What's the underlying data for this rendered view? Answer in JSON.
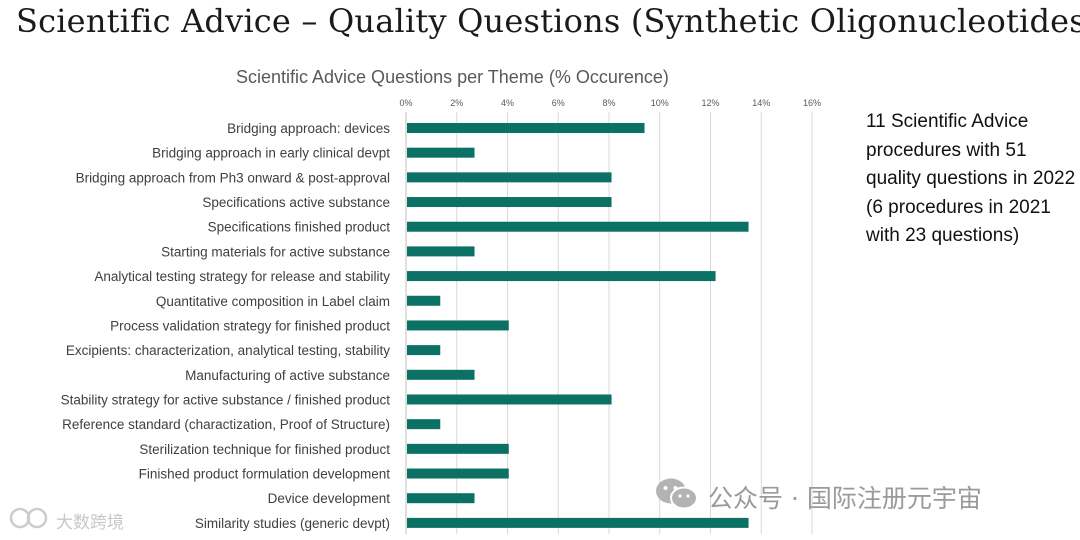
{
  "slide": {
    "title": "Scientific Advice – Quality Questions (Synthetic Oligonucleotides)",
    "side_note": "11 Scientific Advice procedures with 51 quality questions in 2022 (6 procedures in 2021 with 23 questions)"
  },
  "watermarks": {
    "right_text": "公众号 · 国际注册元宇宙",
    "right_icon": "wechat-icon",
    "left_text": "大数跨境",
    "left_icon": "logo-icon"
  },
  "colors": {
    "bar": "#0b7165",
    "grid": "#d9d9d9"
  },
  "chart_data": {
    "type": "bar",
    "orientation": "horizontal",
    "title": "Scientific Advice Questions per Theme (% Occurence)",
    "xlim": [
      0,
      16
    ],
    "xticks": [
      "0%",
      "2%",
      "4%",
      "6%",
      "8%",
      "10%",
      "12%",
      "14%",
      "16%"
    ],
    "xtick_values": [
      0,
      2,
      4,
      6,
      8,
      10,
      12,
      14,
      16
    ],
    "axis_position": "top",
    "grid": true,
    "legend": false,
    "categories": [
      "Bridging approach: devices",
      "Bridging approach in early clinical devpt",
      "Bridging approach from Ph3 onward & post-approval",
      "Specifications active substance",
      "Specifications finished product",
      "Starting materials for active substance",
      "Analytical testing strategy for release and stability",
      "Quantitative composition in Label claim",
      "Process validation strategy for finished product",
      "Excipients: characterization, analytical testing, stability",
      "Manufacturing of active substance",
      "Stability strategy for active substance / finished product",
      "Reference standard (charactization, Proof of Structure)",
      "Sterilization technique for finished product",
      "Finished product formulation development",
      "Device development",
      "Similarity studies (generic devpt)"
    ],
    "values": [
      9.4,
      2.7,
      8.1,
      8.1,
      13.5,
      2.7,
      12.2,
      1.35,
      4.05,
      1.35,
      2.7,
      8.1,
      1.35,
      4.05,
      4.05,
      2.7,
      13.5
    ]
  }
}
